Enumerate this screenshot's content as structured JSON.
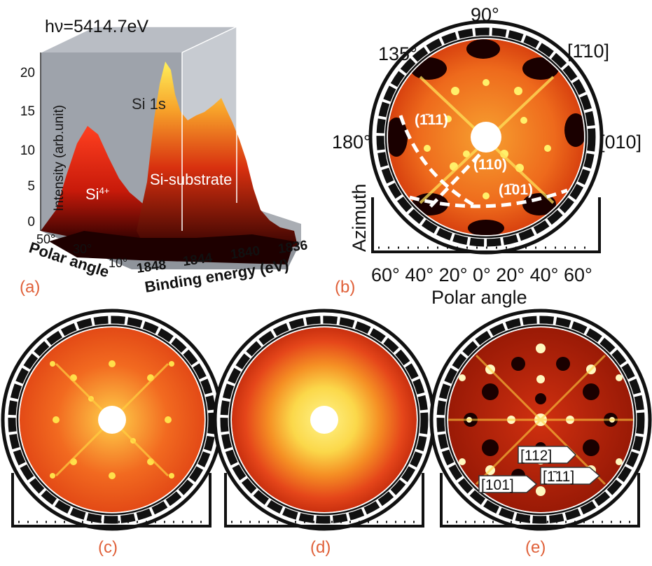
{
  "panel_a": {
    "title": "hν=5414.7eV",
    "inset_label": "Si 1s",
    "peak_left": "Si",
    "peak_left_sup": "4+",
    "peak_right": "Si-substrate",
    "y_axis_label": "Intensity (arb.unit)",
    "y_ticks": [
      "0",
      "5",
      "10",
      "15",
      "20"
    ],
    "polar_axis_label": "Polar angle",
    "polar_ticks": [
      "50°",
      "30°",
      "10°"
    ],
    "energy_axis_label": "Binding energy (eV)",
    "energy_ticks": [
      "1848",
      "1844",
      "1840",
      "1836"
    ],
    "letter": "(a)"
  },
  "panel_b": {
    "angle_90": "90°",
    "angle_135": "135°",
    "angle_180": "180°",
    "dir_110": "[1̄10]",
    "dir_010": "[010]",
    "plane_111": "(1̄11)",
    "plane_110": "(110)",
    "plane_101": "(1̄01)",
    "azimuth_label": "Azimuth",
    "polar_ticks": "60° 40° 20° 0° 20° 40° 60°",
    "polar_label": "Polar angle",
    "letter": "(b)"
  },
  "panel_c": {
    "letter": "(c)"
  },
  "panel_d": {
    "letter": "(d)"
  },
  "panel_e": {
    "label_112": "[112]",
    "label_111": "[1̄11]",
    "label_101": "[101]",
    "letter": "(e)"
  },
  "colors": {
    "hot_dark": "#2a0000",
    "hot_red": "#e02a0a",
    "hot_orange": "#f39a20",
    "hot_yellow": "#ffe54a",
    "letter": "#e0613a"
  }
}
